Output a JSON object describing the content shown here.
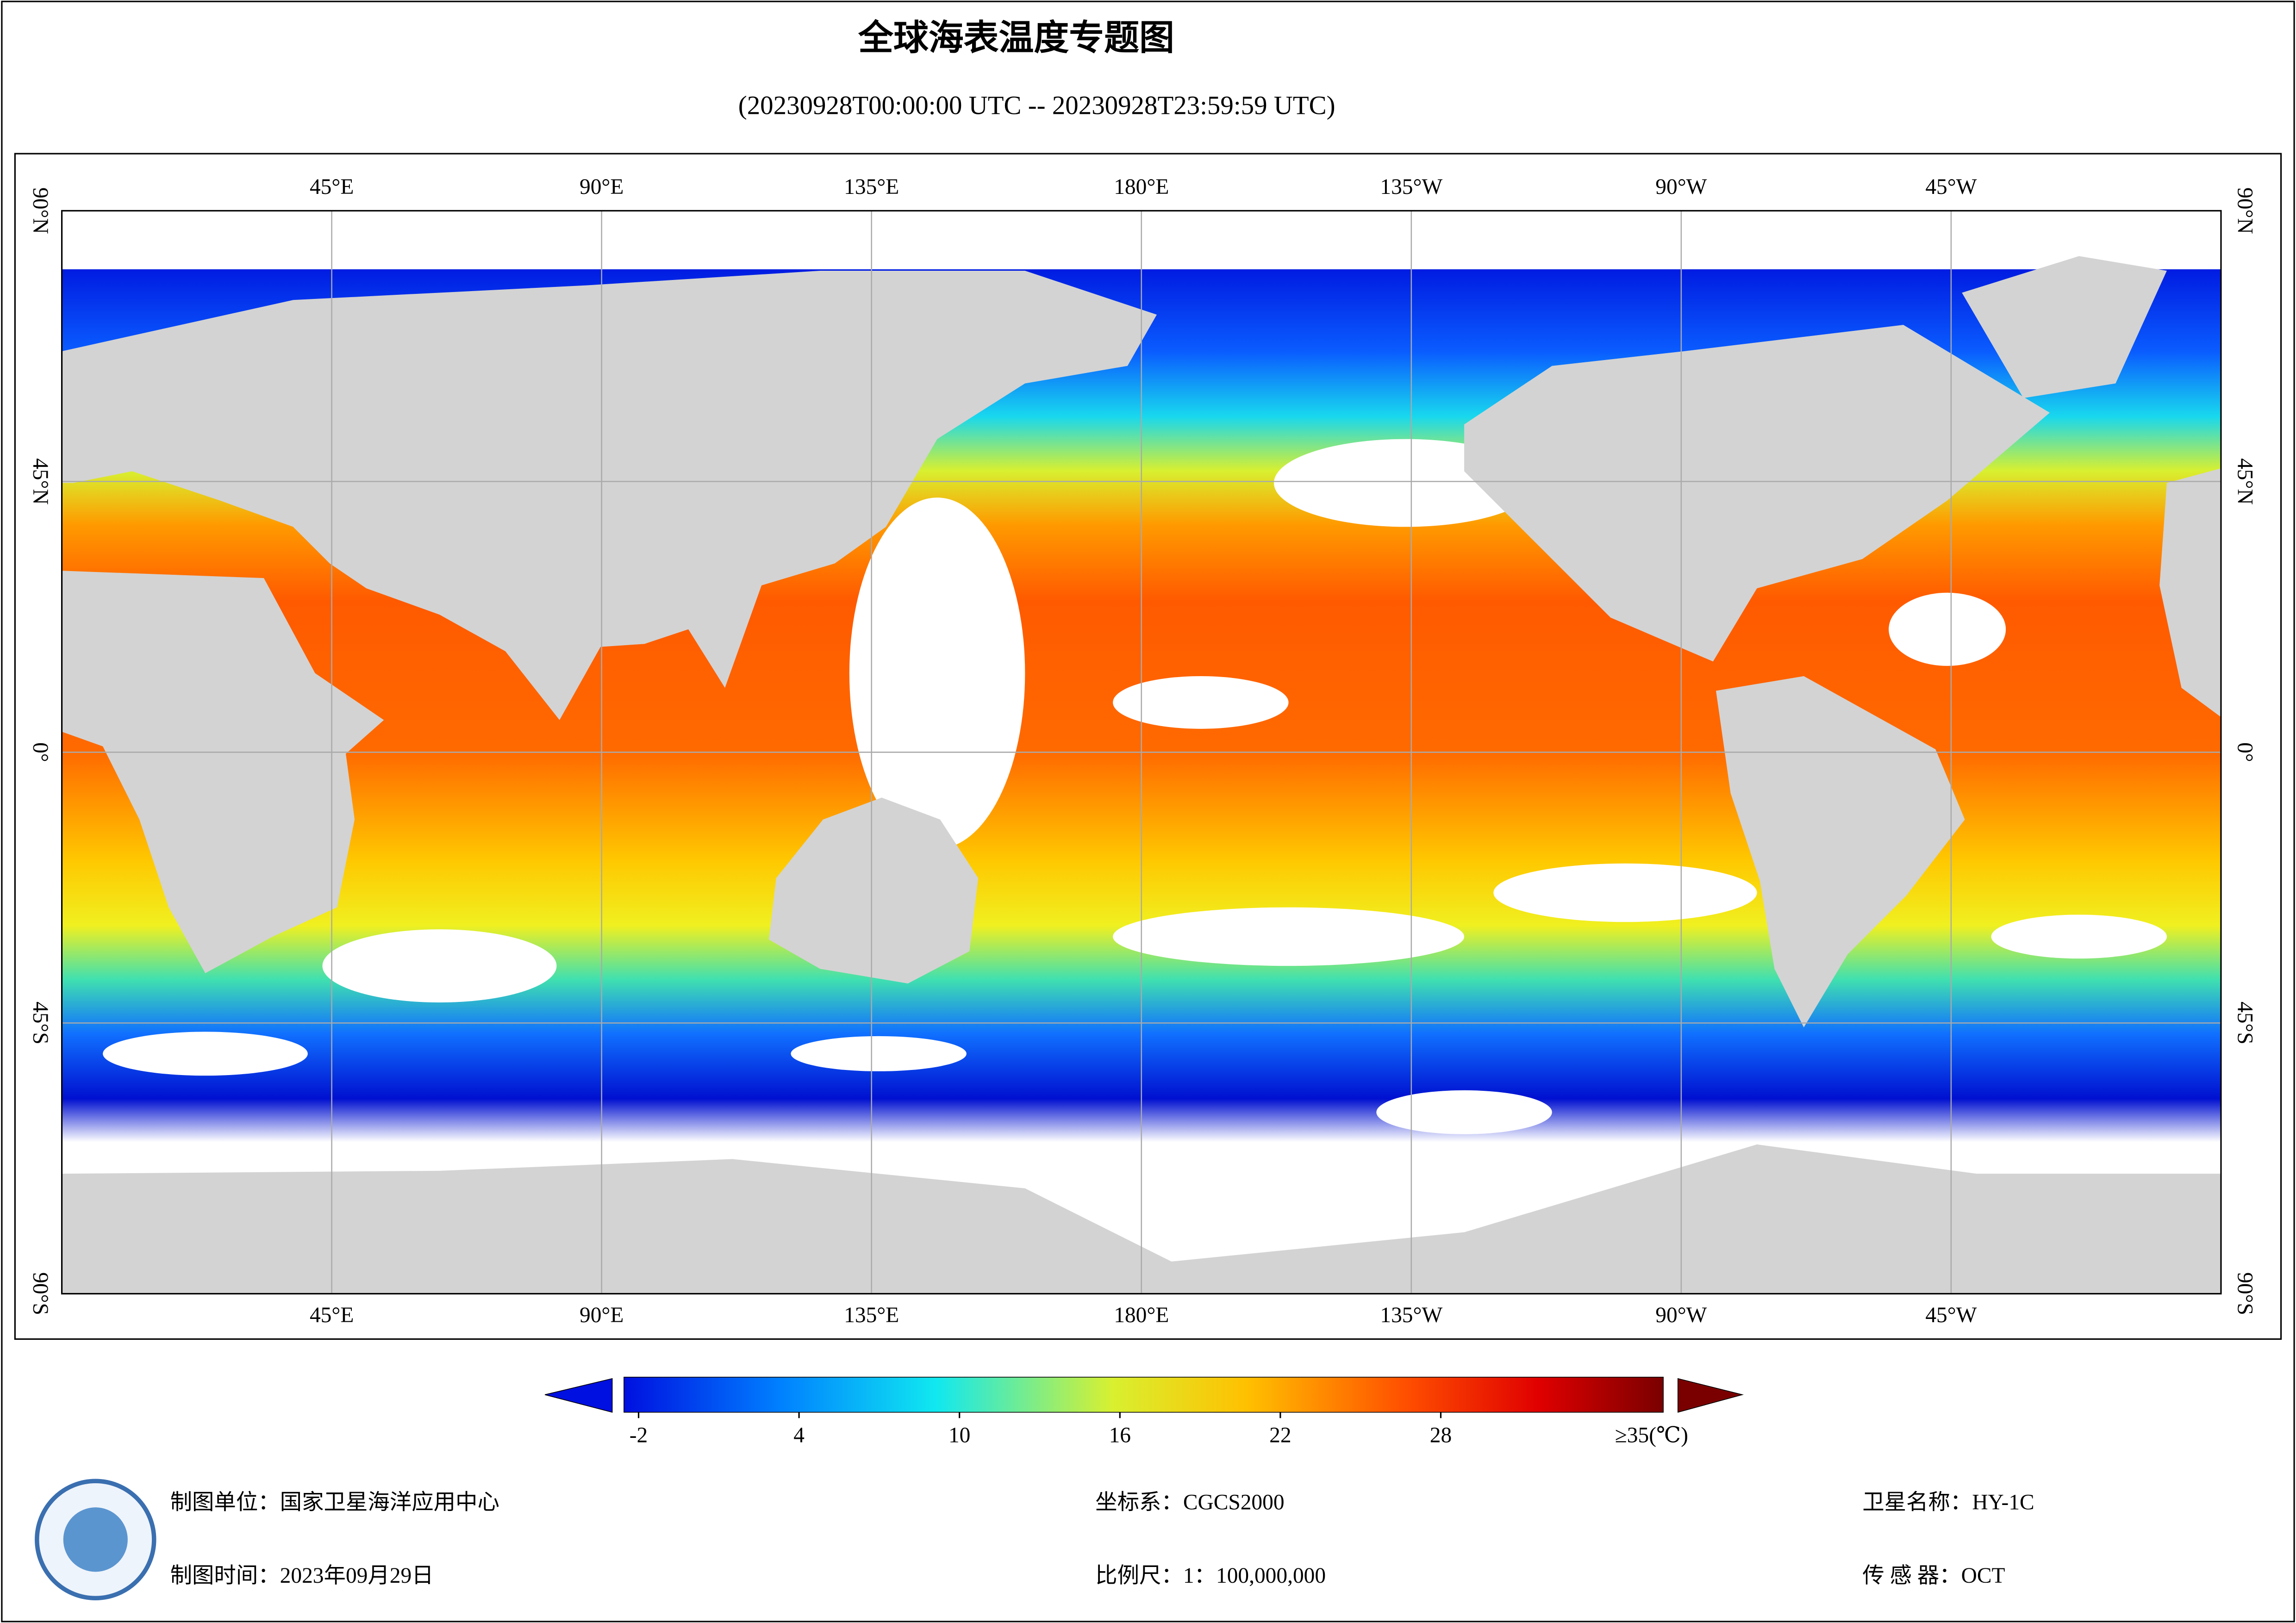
{
  "header": {
    "title": "全球海表温度专题图",
    "subtitle": "(20230928T00:00:00 UTC -- 20230928T23:59:59 UTC)"
  },
  "map": {
    "lon_labels": [
      "45°E",
      "90°E",
      "135°E",
      "180°E",
      "135°W",
      "90°W",
      "45°W"
    ],
    "lat_labels": [
      "90°N",
      "45°N",
      "0°",
      "45°S",
      "90°S"
    ]
  },
  "colorbar": {
    "ticks": [
      -2,
      4,
      10,
      16,
      22,
      28
    ],
    "max_label": "≥35(℃)"
  },
  "footer": {
    "unit": "制图单位：国家卫星海洋应用中心",
    "coords": "坐标系：CGCS2000",
    "satellite": "卫星名称：HY-1C",
    "date": "制图时间：2023年09月29日",
    "scale": "比例尺：1：100,000,000",
    "sensor": "传 感 器：OCT"
  }
}
